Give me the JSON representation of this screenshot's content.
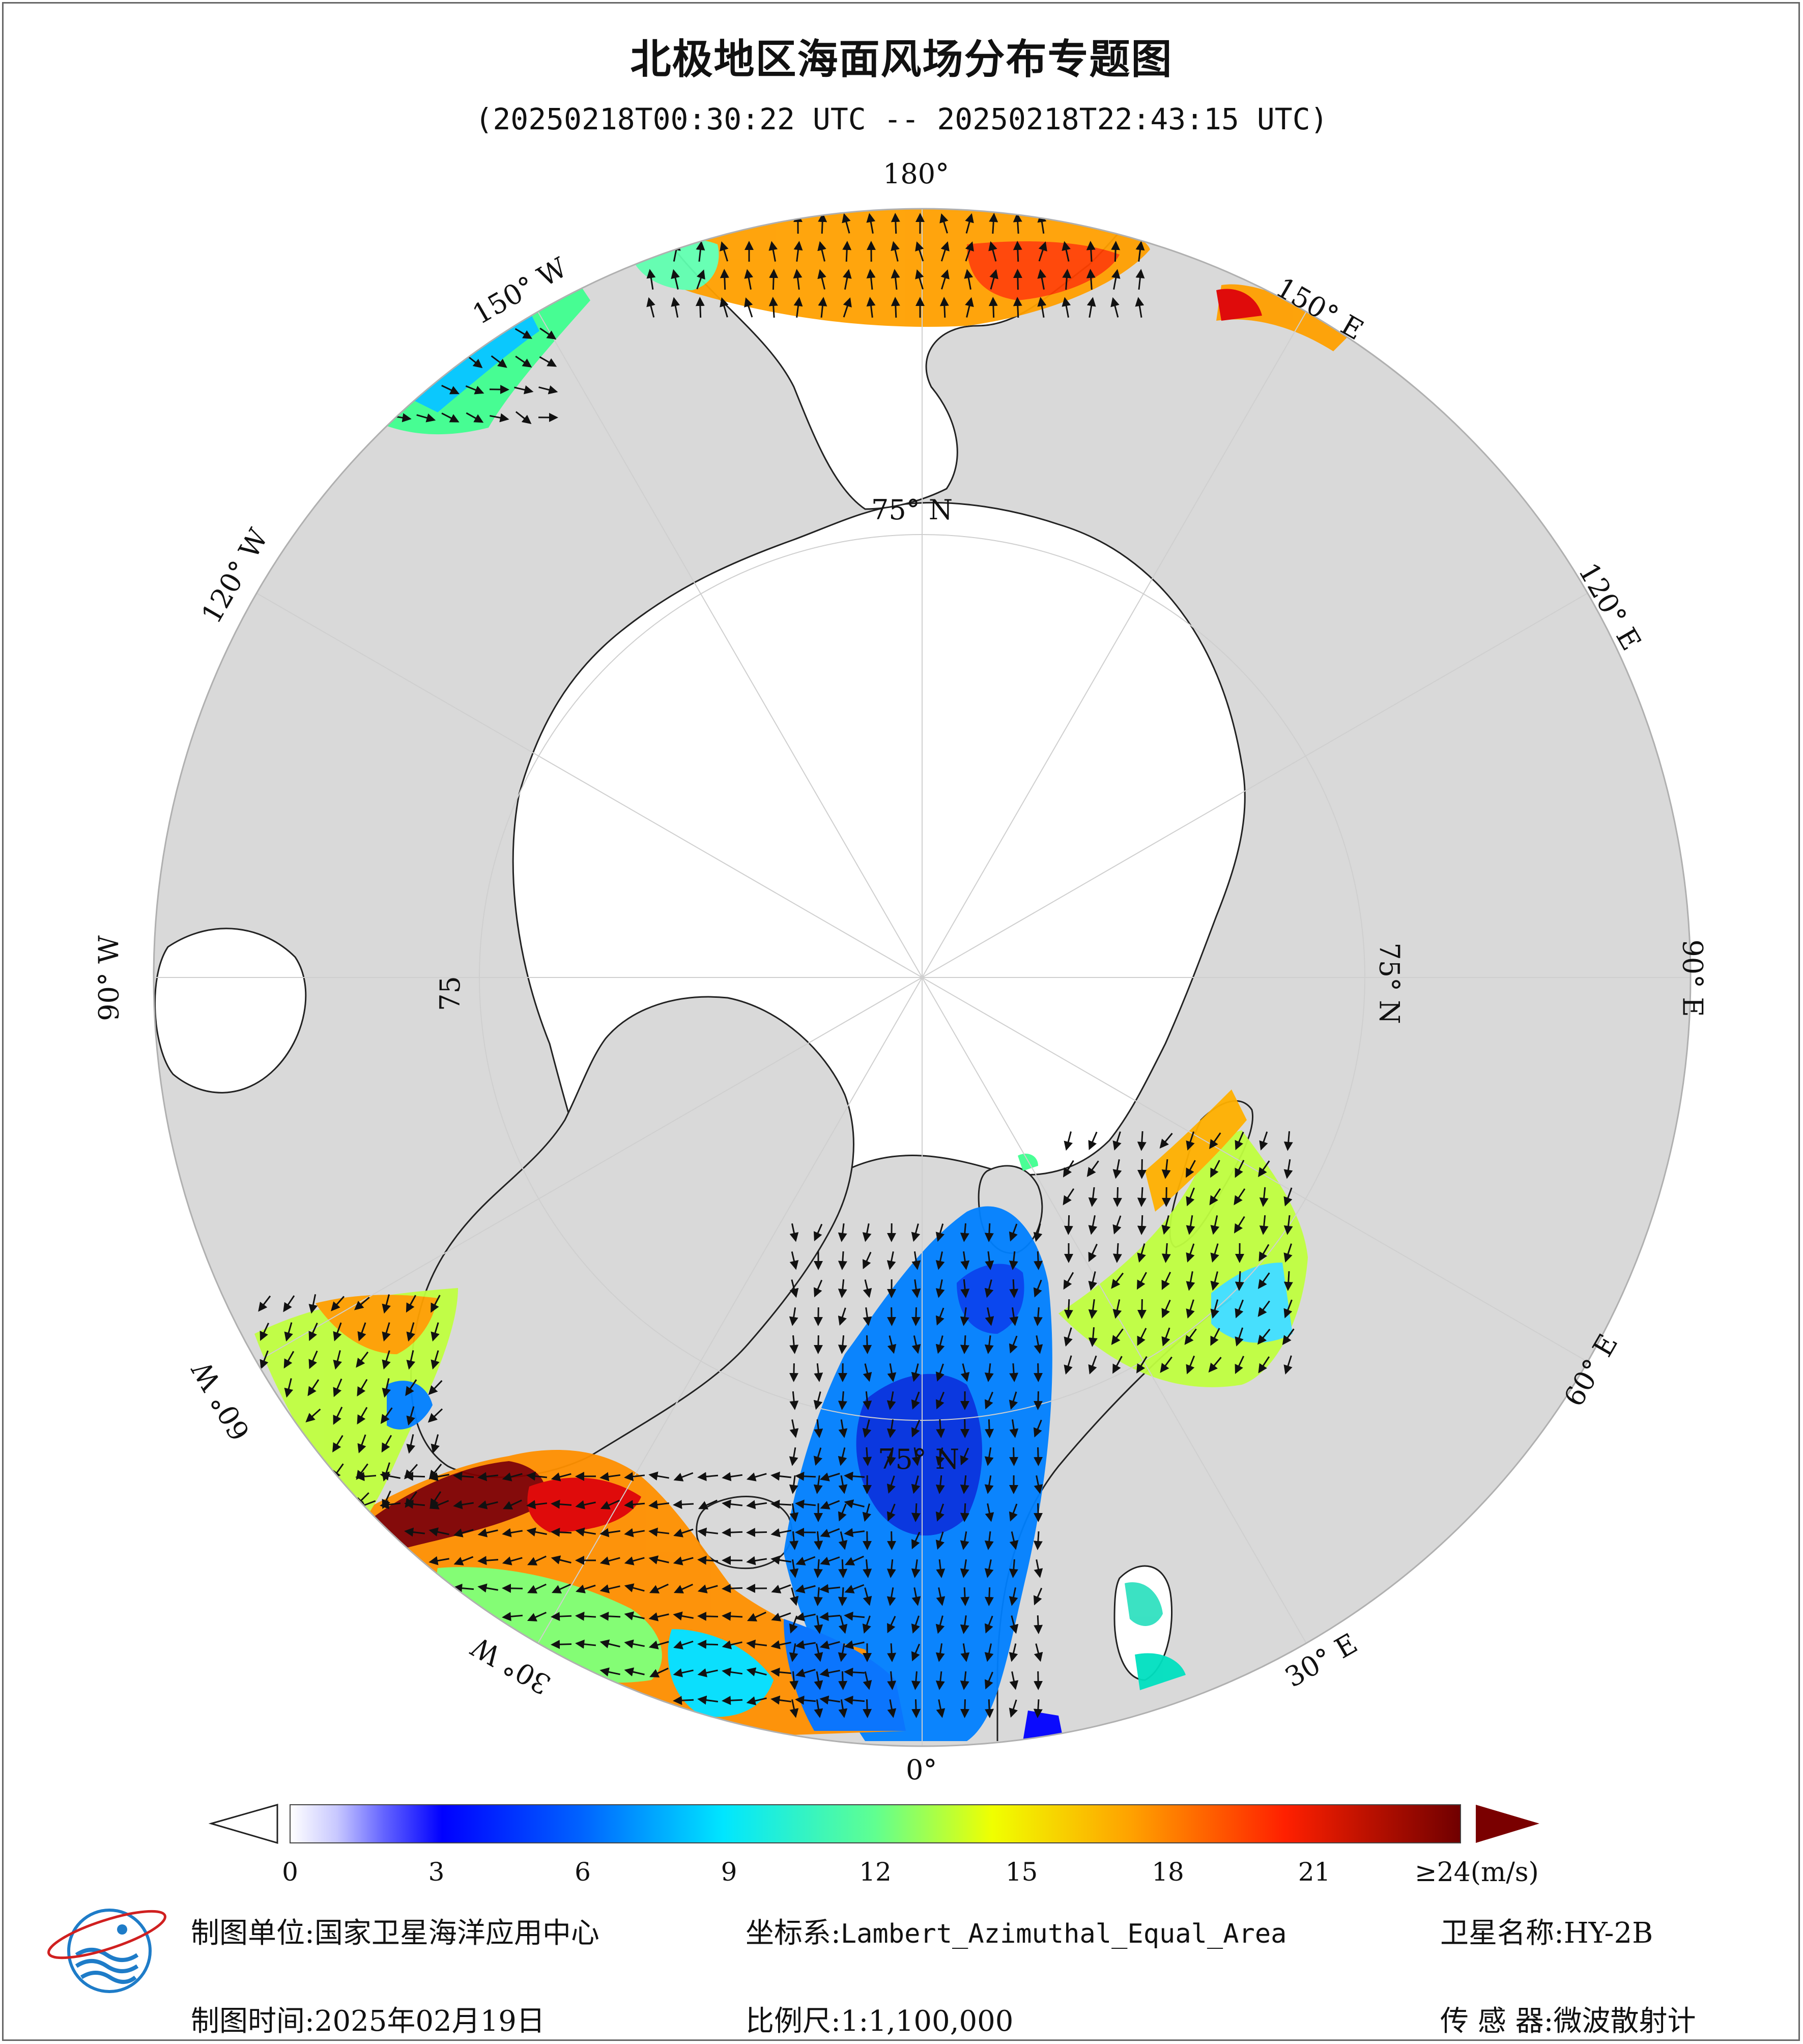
{
  "title": "北极地区海面风场分布专题图",
  "subtitle": "(20250218T00:30:22 UTC -- 20250218T22:43:15 UTC)",
  "map": {
    "projection": "Lambert_Azimuthal_Equal_Area",
    "pole": "North",
    "land_color": "#d9d9d9",
    "ocean_color": "#ffffff",
    "graticule_color": "#cfcfcf",
    "longitude_labels": {
      "lon_180": "180°",
      "lon_150e": "150° E",
      "lon_120e": "120° E",
      "lon_90e": "90° E",
      "lon_60e": "60° E",
      "lon_30e": "30° E",
      "lon_0": "0°",
      "lon_30w": "30° W",
      "lon_60w": "60° W",
      "lon_90w": "90° W",
      "lon_120w": "120° W",
      "lon_150w": "150° W"
    },
    "latitude_labels": {
      "lat_75_top": "75° N",
      "lat_75_right": "75° N",
      "lat_75_bottom": "75° N",
      "lat_75_left": "75"
    }
  },
  "colorbar": {
    "unit_label": "≥24(m/s)",
    "ticks": [
      "0",
      "3",
      "6",
      "9",
      "12",
      "15",
      "18",
      "21"
    ],
    "tick_values": [
      0,
      3,
      6,
      9,
      12,
      15,
      18,
      21
    ],
    "range": [
      0,
      24
    ],
    "colors": [
      "#ffffff",
      "#dcdcff",
      "#b4b4ff",
      "#8c8cff",
      "#5050ff",
      "#1e1eff",
      "#0000e6",
      "#0050ff",
      "#0096ff",
      "#00d2ff",
      "#00ffe0",
      "#40ffb0",
      "#80ff70",
      "#c0ff30",
      "#f0ff00",
      "#ffd000",
      "#ffa000",
      "#ff7000",
      "#ff3c00",
      "#e00000",
      "#a00000",
      "#700000"
    ],
    "over_color": "#7a0000"
  },
  "footer": {
    "unit_label": "制图单位:",
    "unit_value": "国家卫星海洋应用中心",
    "coord_label": "坐标系:",
    "coord_value": "Lambert_Azimuthal_Equal_Area",
    "satellite_label": "卫星名称:",
    "satellite_value": "HY-2B",
    "time_label": "制图时间:",
    "time_value": "2025年02月19日",
    "scale_label": "比例尺:",
    "scale_value": "1:1,100,000",
    "sensor_label": "传 感 器:",
    "sensor_value": "微波散射计"
  }
}
